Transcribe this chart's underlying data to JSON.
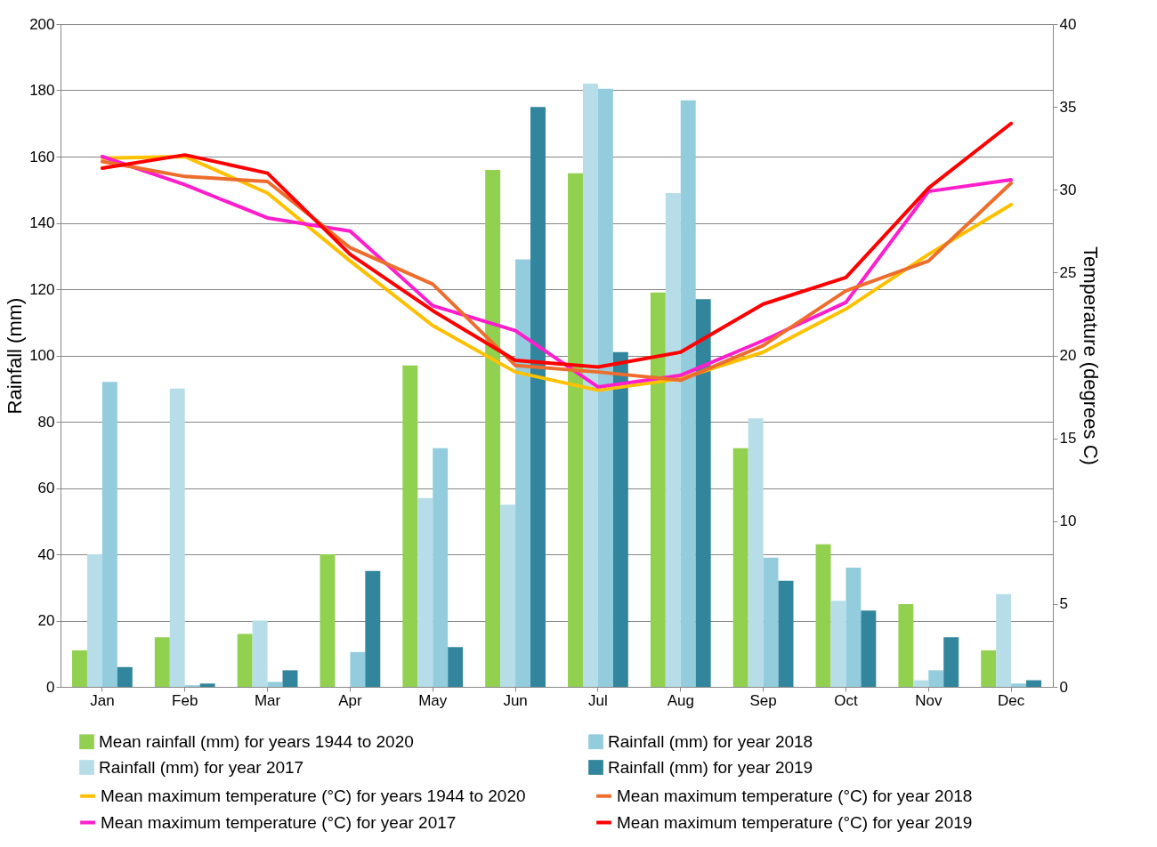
{
  "chart_data": {
    "type": "bar",
    "categories": [
      "Jan",
      "Feb",
      "Mar",
      "Apr",
      "May",
      "Jun",
      "Jul",
      "Aug",
      "Sep",
      "Oct",
      "Nov",
      "Dec"
    ],
    "ylabel": "Rainfall (mm)",
    "y2label": "Temperature  (degrees C)",
    "ylim": [
      0,
      200
    ],
    "yticks": [
      0,
      20,
      40,
      60,
      80,
      100,
      120,
      140,
      160,
      180,
      200
    ],
    "y2lim": [
      0,
      40
    ],
    "y2ticks": [
      0,
      5,
      10,
      15,
      20,
      25,
      30,
      35,
      40
    ],
    "grid": "y",
    "legend": "bottom",
    "series": [
      {
        "name": "Mean rainfall (mm) for years 1944 to 2020",
        "color": "#92d050",
        "values": [
          11,
          15,
          16,
          40,
          97,
          156,
          155,
          119,
          72,
          43,
          25,
          11
        ]
      },
      {
        "name": "Rainfall (mm) for year 2017",
        "color": "#b7dee8",
        "values": [
          40,
          90,
          20,
          0,
          57,
          55,
          182,
          149,
          81,
          26,
          2,
          28
        ]
      },
      {
        "name": "Rainfall (mm) for year 2018",
        "color": "#93cddd",
        "values": [
          92,
          0.5,
          1.5,
          10.5,
          72,
          129,
          180.5,
          177,
          39,
          36,
          5,
          1
        ]
      },
      {
        "name": "Rainfall (mm) for year 2019",
        "color": "#31859c",
        "values": [
          6,
          1,
          5,
          35,
          12,
          175,
          101,
          117,
          32,
          23,
          15,
          2
        ]
      },
      {
        "name": "Mean maximum temperature (°C) for years 1944 to 2020",
        "type": "line",
        "axis": "y2",
        "color": "#ffc000",
        "values": [
          31.9,
          32.0,
          29.8,
          25.7,
          21.8,
          19.0,
          17.9,
          18.6,
          20.2,
          22.8,
          26.1,
          29.1
        ]
      },
      {
        "name": "Mean maximum temperature (°C) for year 2017",
        "type": "line",
        "axis": "y2",
        "color": "#ff1dcc",
        "values": [
          32.0,
          30.3,
          28.3,
          27.5,
          23.0,
          21.5,
          18.1,
          18.8,
          20.9,
          23.2,
          29.9,
          30.6
        ]
      },
      {
        "name": "Mean maximum temperature (°C) for year 2018",
        "type": "line",
        "axis": "y2",
        "color": "#ed6d2d",
        "values": [
          31.7,
          30.8,
          30.5,
          26.5,
          24.3,
          19.4,
          19.0,
          18.5,
          20.6,
          23.9,
          25.7,
          30.4
        ]
      },
      {
        "name": "Mean maximum temperature (°C) for year 2019",
        "type": "line",
        "axis": "y2",
        "color": "#ff0000",
        "values": [
          31.3,
          32.1,
          31.0,
          26.1,
          22.7,
          19.7,
          19.3,
          20.2,
          23.1,
          24.7,
          30.1,
          34.0
        ]
      }
    ]
  }
}
